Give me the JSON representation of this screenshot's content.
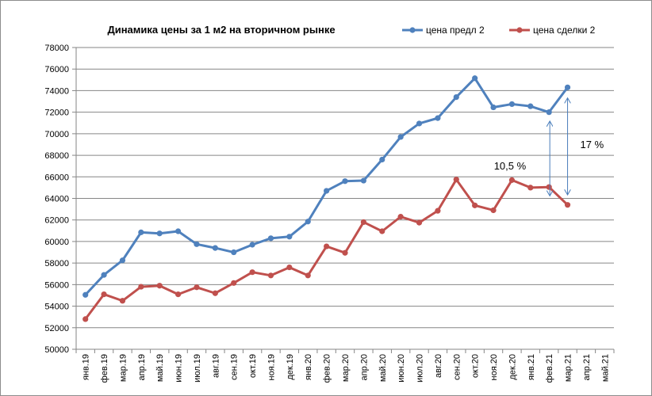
{
  "chart_data": {
    "type": "line",
    "title": "Динамика цены за 1 м2 на вторичном рынке",
    "xlabel": "",
    "ylabel": "",
    "ylim": [
      50000,
      78000
    ],
    "ytick_step": 2000,
    "grid": true,
    "legend_position": "top-right",
    "categories": [
      "янв.19",
      "фев.19",
      "мар.19",
      "апр.19",
      "май.19",
      "июн.19",
      "июл.19",
      "авг.19",
      "сен.19",
      "окт.19",
      "ноя.19",
      "дек.19",
      "янв.20",
      "фев.20",
      "мар.20",
      "апр.20",
      "май.20",
      "июн.20",
      "июл.20",
      "авг.20",
      "сен.20",
      "окт.20",
      "ноя.20",
      "дек.20",
      "янв.21",
      "фев.21",
      "мар.21",
      "апр.21",
      "май.21"
    ],
    "series": [
      {
        "name": "цена предл 2",
        "color": "#4f81bd",
        "values": [
          55050,
          56900,
          58250,
          60850,
          60750,
          60950,
          59750,
          59400,
          59000,
          59700,
          60300,
          60450,
          61850,
          64700,
          65600,
          65650,
          67600,
          69700,
          70950,
          71450,
          73400,
          75150,
          72450,
          72750,
          72550,
          72000,
          74300,
          null,
          null
        ]
      },
      {
        "name": "цена сделки 2",
        "color": "#c0504d",
        "values": [
          52800,
          55100,
          54500,
          55800,
          55900,
          55100,
          55750,
          55200,
          56150,
          57150,
          56850,
          57600,
          56850,
          59550,
          58950,
          61800,
          60950,
          62300,
          61750,
          62850,
          65750,
          63350,
          62900,
          65700,
          65000,
          65050,
          63400,
          null,
          null
        ]
      }
    ],
    "annotations": [
      {
        "text": "10,5 %",
        "from_category": "фев.21",
        "from_value": 71100,
        "to_value": 64300
      },
      {
        "text": "17 %",
        "from_category": "мар.21",
        "from_value": 73250,
        "to_value": 64400
      }
    ]
  }
}
